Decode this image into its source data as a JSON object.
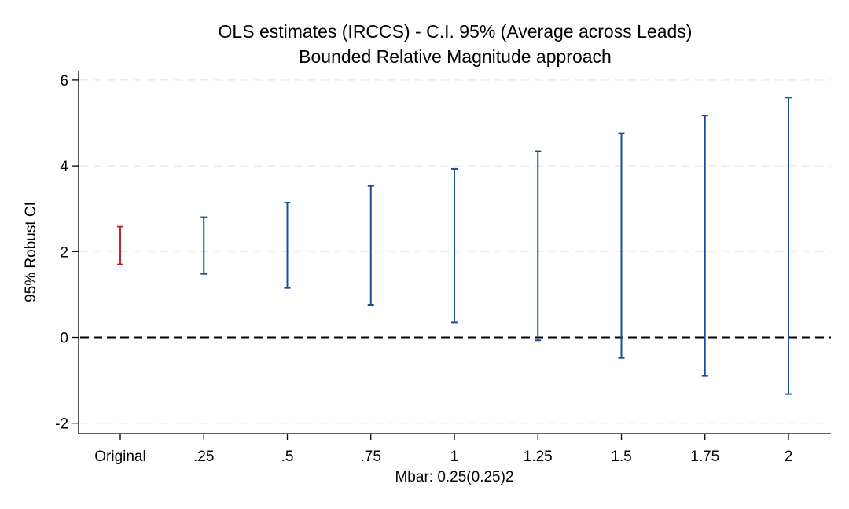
{
  "chart_data": {
    "type": "errorbar",
    "title": "OLS estimates (IRCCS) - C.I. 95% (Average across Leads)",
    "subtitle": "Bounded Relative Magnitude approach",
    "xlabel": "Mbar: 0.25(0.25)2",
    "ylabel": "95% Robust CI",
    "ylim": [
      -2.3,
      6.25
    ],
    "yticks": [
      -2,
      0,
      2,
      4,
      6
    ],
    "ytick_labels": [
      "-2",
      "0",
      "2",
      "4",
      "6"
    ],
    "categories": [
      "Original",
      ".25",
      ".5",
      ".75",
      "1",
      "1.25",
      "1.5",
      "1.75",
      "2"
    ],
    "intervals": [
      {
        "category": "Original",
        "lb": 1.7,
        "ub": 2.58,
        "color": "#c0272d"
      },
      {
        "category": ".25",
        "lb": 1.48,
        "ub": 2.8,
        "color": "#1a4f9c"
      },
      {
        "category": ".5",
        "lb": 1.15,
        "ub": 3.14,
        "color": "#1a4f9c"
      },
      {
        "category": ".75",
        "lb": 0.76,
        "ub": 3.53,
        "color": "#1a4f9c"
      },
      {
        "category": "1",
        "lb": 0.35,
        "ub": 3.93,
        "color": "#1a4f9c"
      },
      {
        "category": "1.25",
        "lb": -0.07,
        "ub": 4.34,
        "color": "#1a4f9c"
      },
      {
        "category": "1.5",
        "lb": -0.48,
        "ub": 4.76,
        "color": "#1a4f9c"
      },
      {
        "category": "1.75",
        "lb": -0.9,
        "ub": 5.17,
        "color": "#1a4f9c"
      },
      {
        "category": "2",
        "lb": -1.32,
        "ub": 5.59,
        "color": "#1a4f9c"
      }
    ],
    "reference_line": {
      "y": 0,
      "style": "dashed"
    },
    "grid": true
  }
}
